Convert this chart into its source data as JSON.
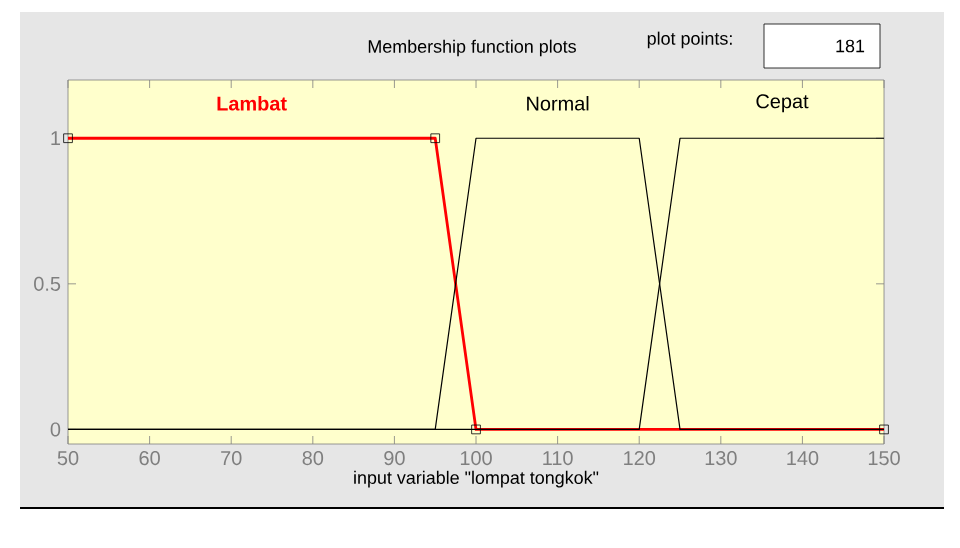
{
  "chart_data": {
    "type": "line",
    "title": "Membership function plots",
    "xlabel": "input variable \"lompat tongkok\"",
    "annotations": [
      "plot points:",
      "181"
    ],
    "series": [
      {
        "name": "Lambat",
        "color": "#ff0000",
        "x": [
          50,
          95,
          100,
          150
        ],
        "values": [
          1,
          1,
          0,
          0
        ],
        "marker": "square"
      },
      {
        "name": "Normal",
        "color": "#000000",
        "x": [
          50,
          95,
          100,
          120,
          125,
          150
        ],
        "values": [
          0,
          0,
          1,
          1,
          0,
          0
        ]
      },
      {
        "name": "Cepat",
        "color": "#000000",
        "x": [
          50,
          120,
          125,
          150
        ],
        "values": [
          0,
          0,
          1,
          1
        ]
      }
    ],
    "xlim": [
      50,
      150
    ],
    "ylim": [
      -0.05,
      1.2
    ],
    "xticks": [
      50,
      60,
      70,
      80,
      90,
      100,
      110,
      120,
      130,
      140,
      150
    ],
    "yticks": [
      0,
      0.5,
      1
    ],
    "grid": false,
    "line_style": "solid"
  }
}
